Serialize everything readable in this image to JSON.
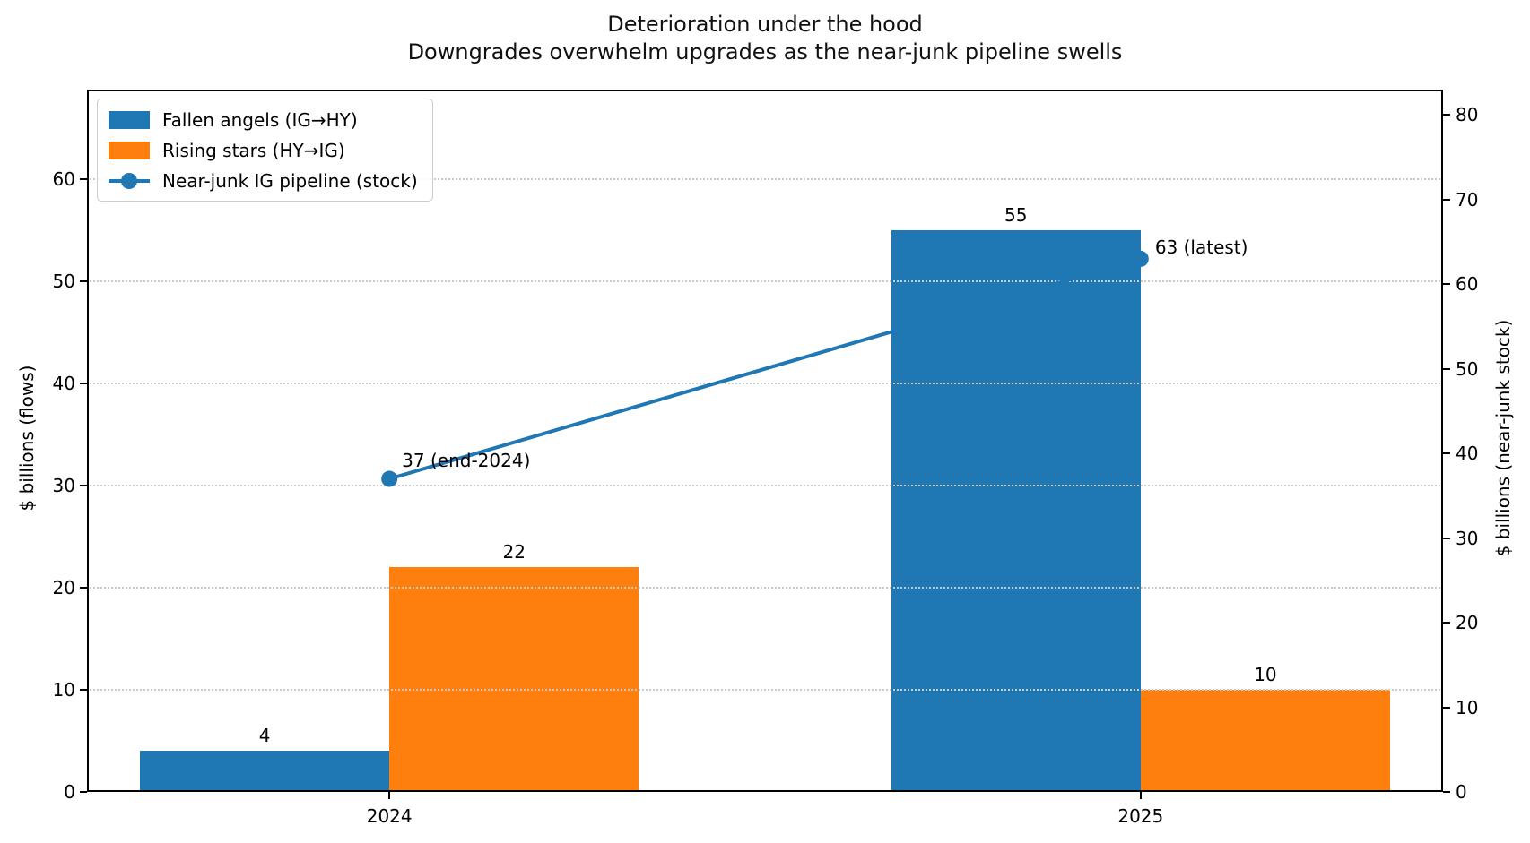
{
  "chart_data": {
    "type": "bar",
    "title": "Deterioration under the hood",
    "subtitle": "Downgrades overwhelm upgrades as the near-junk pipeline swells",
    "categories": [
      "2024",
      "2025"
    ],
    "series": [
      {
        "name": "Fallen angels (IG→HY)",
        "type": "bar",
        "axis": "left",
        "color": "#1f77b4",
        "values": [
          4,
          55
        ],
        "value_labels": [
          "4",
          "55"
        ]
      },
      {
        "name": "Rising stars (HY→IG)",
        "type": "bar",
        "axis": "left",
        "color": "#ff7f0e",
        "values": [
          22,
          10
        ],
        "value_labels": [
          "22",
          "10"
        ]
      },
      {
        "name": "Near-junk IG pipeline (stock)",
        "type": "line",
        "axis": "right",
        "color": "#1f77b4",
        "values": [
          37,
          63
        ],
        "point_labels": [
          "37 (end-2024)",
          "63 (latest)"
        ]
      }
    ],
    "left_axis": {
      "label": "$ billions (flows)",
      "ticks": [
        0,
        10,
        20,
        30,
        40,
        50,
        60
      ],
      "max": 68.8
    },
    "right_axis": {
      "label": "$ billions (near-junk stock)",
      "ticks": [
        0,
        10,
        20,
        30,
        40,
        50,
        60,
        70,
        80
      ],
      "max": 83
    },
    "grid": {
      "on": true,
      "style": "dotted",
      "axis": "left",
      "tick_values": [
        10,
        20,
        30,
        40,
        50,
        60
      ],
      "color": "#c9c9c9"
    },
    "legend": {
      "position": "upper-left"
    },
    "text_color": "#000000",
    "spine_color": "#000000"
  }
}
